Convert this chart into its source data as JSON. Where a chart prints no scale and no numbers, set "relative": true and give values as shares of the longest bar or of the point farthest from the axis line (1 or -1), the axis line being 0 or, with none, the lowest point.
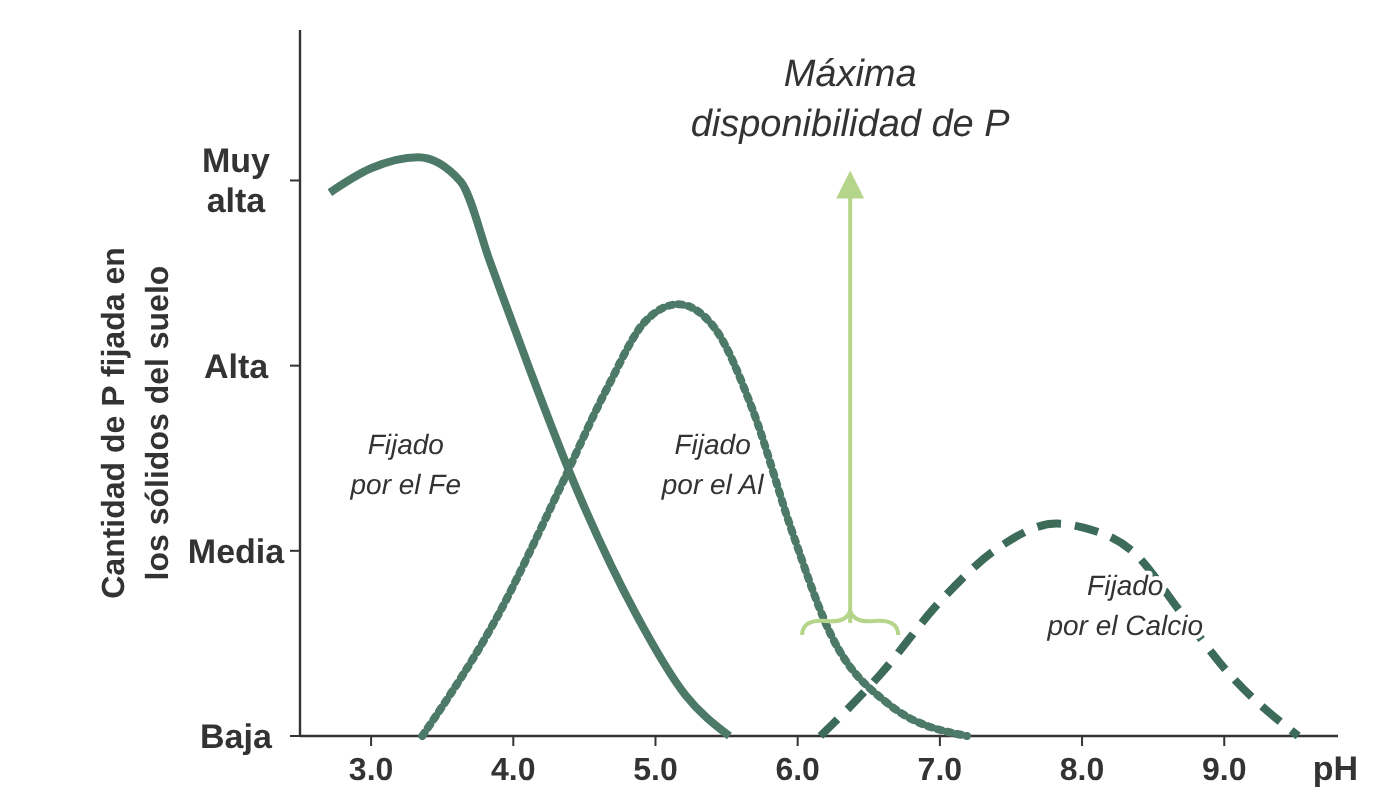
{
  "chart_data": {
    "type": "line",
    "relative": true,
    "xlabel": "pH",
    "ylabel": "Cantidad de P fijada en\nlos sólidos del suelo",
    "xlim": [
      2.5,
      9.8
    ],
    "xticks": [
      {
        "value": 3,
        "label": "3.0"
      },
      {
        "value": 4,
        "label": "4.0"
      },
      {
        "value": 5,
        "label": "5.0"
      },
      {
        "value": 6,
        "label": "6.0"
      },
      {
        "value": 7,
        "label": "7.0"
      },
      {
        "value": 8,
        "label": "8.0"
      },
      {
        "value": 9,
        "label": "9.0"
      }
    ],
    "series": [
      {
        "color": "#4d7a68",
        "line_style": "solid",
        "x": [
          2.71,
          3.0,
          3.33,
          3.63,
          3.84,
          4.11,
          4.45,
          4.86,
          5.21,
          5.52
        ],
        "values": [
          0.939,
          0.981,
          1,
          0.958,
          0.817,
          0.637,
          0.424,
          0.212,
          0.071,
          0
        ]
      },
      {
        "color": "#4d7a68",
        "line_style": "dotted",
        "x": [
          3.36,
          3.9,
          4.32,
          4.66,
          4.93,
          5.16,
          5.41,
          5.68,
          5.96,
          6.23,
          6.64,
          7.19
        ],
        "values": [
          0,
          0.212,
          0.424,
          0.601,
          0.717,
          0.746,
          0.707,
          0.566,
          0.354,
          0.177,
          0.055,
          0
        ]
      },
      {
        "color": "#3d6b5a",
        "line_style": "dashed",
        "x": [
          6.16,
          6.58,
          7.0,
          7.41,
          7.82,
          8.01,
          8.36,
          8.7,
          9.04,
          9.52
        ],
        "values": [
          0,
          0.106,
          0.232,
          0.325,
          0.367,
          0.36,
          0.318,
          0.212,
          0.106,
          0
        ]
      }
    ],
    "annotations": [
      "Fijado\npor el Fe",
      "Fijado\npor el Al",
      "Fijado\npor el Calcio",
      "Máxima\ndisponibilidad de P",
      "Baja",
      "Media",
      "Alta",
      "Muy\nalta"
    ]
  }
}
